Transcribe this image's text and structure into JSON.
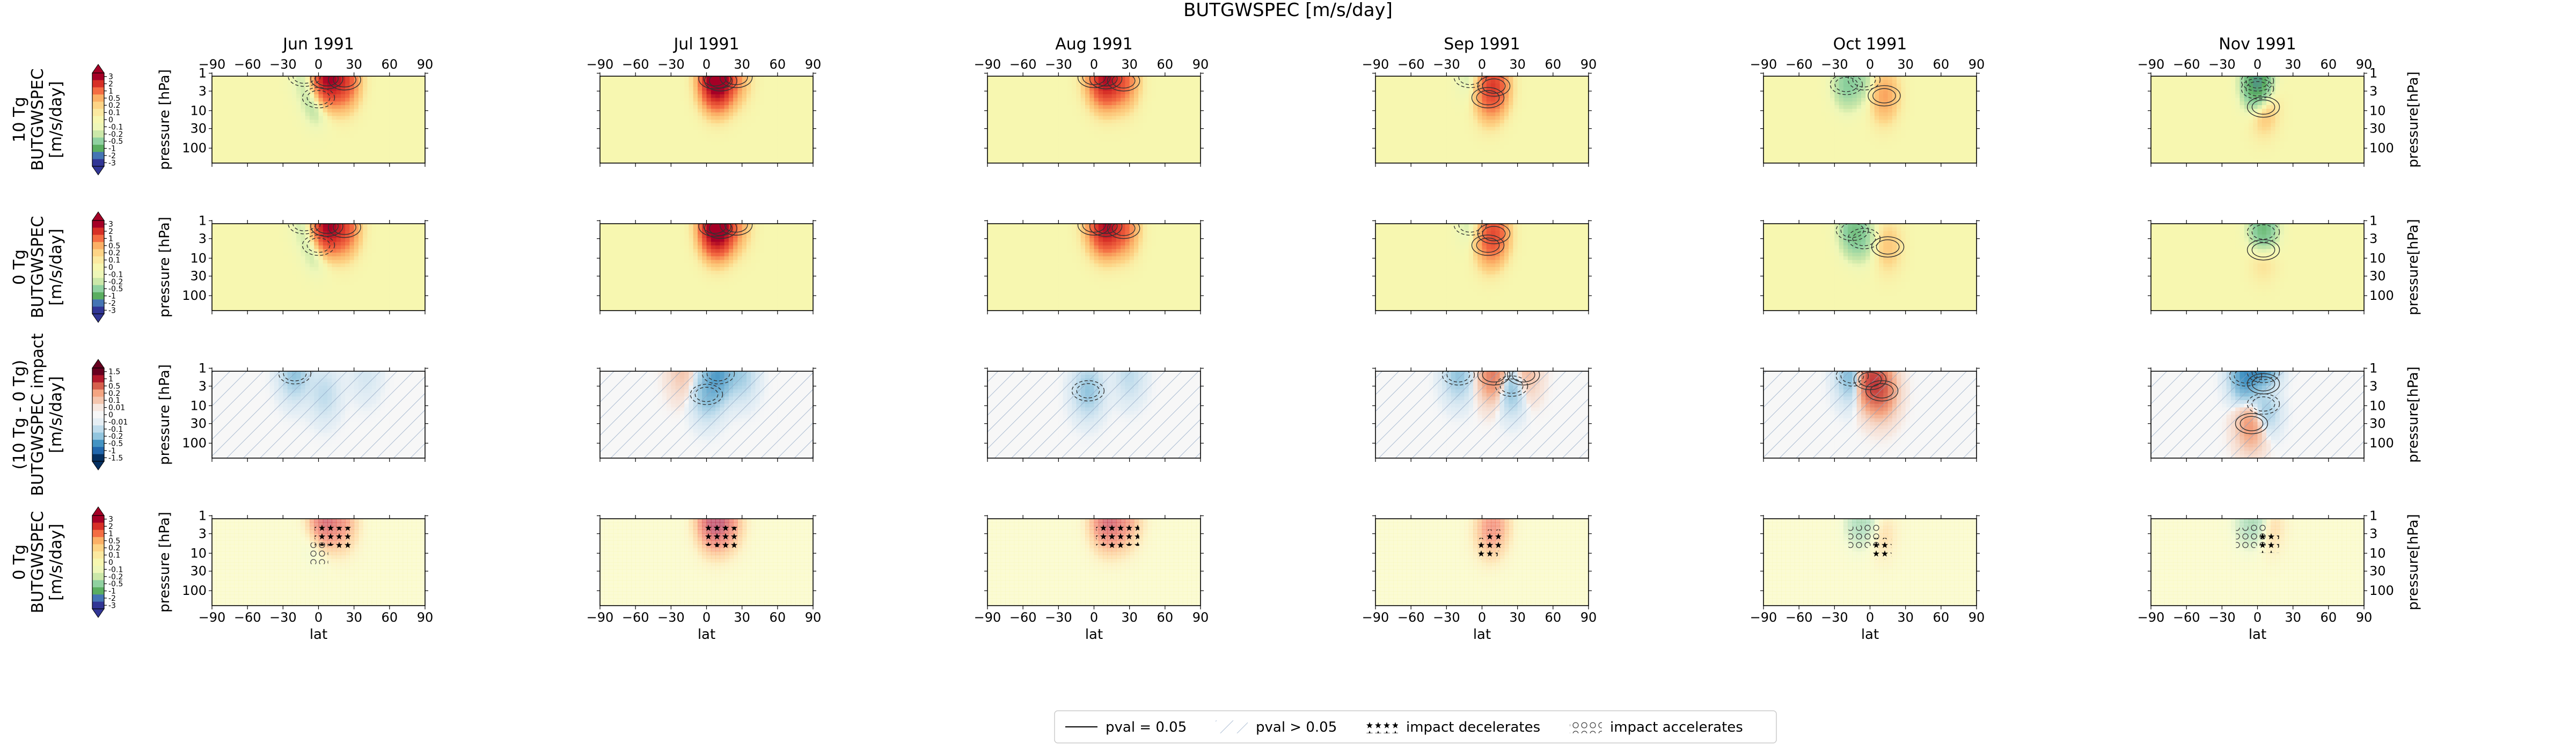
{
  "figure": {
    "suptitle": "BUTGWSPEC [m/s/day]",
    "columns": [
      "Jun 1991",
      "Jul 1991",
      "Aug 1991",
      "Sep 1991",
      "Oct 1991",
      "Nov 1991"
    ]
  },
  "axes": {
    "xlabel": "lat",
    "ylabel_left": "pressure [hPa]",
    "ylabel_right": "pressure[hPa]",
    "x_ticks": [
      -90,
      -60,
      -30,
      0,
      30,
      60,
      90
    ],
    "y_ticks": [
      1,
      3,
      10,
      30,
      100
    ],
    "ylim": [
      1.2,
      250
    ]
  },
  "rows": [
    {
      "colorbar_label": "10 Tg\nBUTGWSPEC\n[m/s/day]",
      "colorbar_ticks": [
        "3",
        "2",
        "1",
        "0.5",
        "0.2",
        "0.1",
        "0",
        "-0.1",
        "-0.2",
        "-0.5",
        "-1",
        "-2",
        "-3"
      ],
      "palette": "RdYlGn_r"
    },
    {
      "colorbar_label": "0 Tg\nBUTGWSPEC\n[m/s/day]",
      "colorbar_ticks": [
        "3",
        "2",
        "1",
        "0.5",
        "0.2",
        "0.1",
        "0",
        "-0.1",
        "-0.2",
        "-0.5",
        "-1",
        "-2",
        "-3"
      ],
      "palette": "RdYlGn_r"
    },
    {
      "colorbar_label": "(10 Tg - 0 Tg)\nBUTGWSPEC impact\n[m/s/day]",
      "colorbar_ticks": [
        "1.5",
        "1",
        "0.5",
        "0.2",
        "0.1",
        "0.01",
        "0",
        "-0.01",
        "-0.1",
        "-0.2",
        "-0.5",
        "-1",
        "-1.5"
      ],
      "palette": "RdBu_r"
    },
    {
      "colorbar_label": "0 Tg\nBUTGWSPEC\n[m/s/day]",
      "colorbar_ticks": [
        "3",
        "2",
        "1",
        "0.5",
        "0.2",
        "0.1",
        "0",
        "-0.1",
        "-0.2",
        "-0.5",
        "-1",
        "-2",
        "-3"
      ],
      "palette": "RdYlGn_r"
    }
  ],
  "legend": {
    "items": [
      {
        "label": "pval = 0.05",
        "style": "solid-line"
      },
      {
        "label": "pval > 0.05",
        "style": "diagonal-hatch"
      },
      {
        "label": "impact decelerates",
        "style": "star-hatch"
      },
      {
        "label": "impact accelerates",
        "style": "circle-hatch"
      }
    ]
  },
  "chart_data": {
    "type": "heatmap",
    "title": "BUTGWSPEC [m/s/day]",
    "xlabel": "lat",
    "ylabel": "pressure [hPa]",
    "xlim": [
      -90,
      90
    ],
    "ylim": [
      250,
      1.2
    ],
    "y_scale": "log",
    "panels": "4 rows x 6 months (Jun-Nov 1991)",
    "features_sigma": [
      8,
      0.45
    ],
    "features": {
      "row1_10Tg": [
        [
          [
            7,
            1.4,
            3.0
          ],
          [
            22,
            1.5,
            1.5
          ],
          [
            0,
            4.5,
            -0.6
          ],
          [
            -12,
            1.2,
            -0.2
          ]
        ],
        [
          [
            7,
            1.4,
            3.0
          ],
          [
            12,
            1.6,
            1.5
          ],
          [
            25,
            1.3,
            0.5
          ]
        ],
        [
          [
            10,
            1.4,
            2.5
          ],
          [
            25,
            1.6,
            1.0
          ],
          [
            0,
            1.3,
            0.3
          ]
        ],
        [
          [
            10,
            2.2,
            1.5
          ],
          [
            5,
            4.5,
            0.5
          ],
          [
            -10,
            1.3,
            -0.2
          ]
        ],
        [
          [
            12,
            4.0,
            0.6
          ],
          [
            -20,
            2.0,
            -0.5
          ],
          [
            -5,
            1.5,
            -0.3
          ]
        ],
        [
          [
            0,
            1.6,
            -1.0
          ],
          [
            0,
            2.6,
            -0.6
          ],
          [
            5,
            8.0,
            0.5
          ]
        ]
      ],
      "row2_0Tg": [
        [
          [
            7,
            1.4,
            3.0
          ],
          [
            22,
            1.5,
            1.3
          ],
          [
            0,
            4.5,
            -0.5
          ],
          [
            -12,
            1.2,
            -0.2
          ]
        ],
        [
          [
            7,
            1.4,
            3.0
          ],
          [
            12,
            1.6,
            1.5
          ],
          [
            25,
            1.3,
            0.5
          ]
        ],
        [
          [
            10,
            1.4,
            2.5
          ],
          [
            25,
            1.6,
            1.0
          ],
          [
            0,
            1.3,
            0.3
          ]
        ],
        [
          [
            10,
            2.2,
            1.3
          ],
          [
            5,
            4.5,
            0.4
          ],
          [
            -10,
            1.3,
            -0.2
          ]
        ],
        [
          [
            -15,
            1.8,
            -0.6
          ],
          [
            -5,
            3.0,
            -0.3
          ],
          [
            15,
            5.0,
            0.3
          ]
        ],
        [
          [
            5,
            2.0,
            -1.0
          ],
          [
            5,
            6.0,
            0.4
          ]
        ]
      ],
      "row3_impact": [
        [
          [
            -20,
            1.4,
            -0.2
          ],
          [
            5,
            5.0,
            -0.1
          ],
          [
            40,
            1.5,
            -0.05
          ]
        ],
        [
          [
            10,
            1.4,
            -0.4
          ],
          [
            0,
            5.0,
            -0.2
          ],
          [
            -20,
            1.3,
            0.1
          ],
          [
            30,
            1.5,
            -0.15
          ]
        ],
        [
          [
            -5,
            4.0,
            -0.2
          ],
          [
            30,
            1.6,
            -0.1
          ]
        ],
        [
          [
            10,
            1.5,
            0.4
          ],
          [
            25,
            3.0,
            -0.3
          ],
          [
            -20,
            1.5,
            -0.2
          ],
          [
            35,
            1.5,
            0.2
          ]
        ],
        [
          [
            0,
            2.0,
            0.6
          ],
          [
            10,
            4.0,
            0.4
          ],
          [
            -15,
            1.6,
            -0.3
          ]
        ],
        [
          [
            5,
            1.3,
            -1.0
          ],
          [
            -10,
            1.6,
            -0.5
          ],
          [
            5,
            2.6,
            0.8
          ],
          [
            5,
            9.0,
            -0.4
          ],
          [
            -5,
            30.0,
            0.3
          ]
        ]
      ],
      "row4_0Tg_pval": [
        [
          [
            5,
            1.3,
            2.5
          ],
          [
            20,
            1.5,
            1.0
          ],
          [
            0,
            4.0,
            -0.4
          ]
        ],
        [
          [
            5,
            1.3,
            2.5
          ],
          [
            12,
            1.4,
            1.2
          ],
          [
            20,
            1.5,
            0.6
          ]
        ],
        [
          [
            10,
            1.3,
            2.0
          ],
          [
            20,
            1.5,
            1.0
          ],
          [
            30,
            1.3,
            0.5
          ]
        ],
        [
          [
            10,
            1.8,
            1.0
          ],
          [
            5,
            3.0,
            0.4
          ]
        ],
        [
          [
            -10,
            1.5,
            -0.5
          ],
          [
            0,
            1.3,
            -0.3
          ],
          [
            10,
            3.0,
            0.3
          ]
        ],
        [
          [
            0,
            1.3,
            -0.6
          ],
          [
            -10,
            1.6,
            -0.3
          ],
          [
            10,
            2.0,
            0.4
          ]
        ]
      ]
    }
  }
}
